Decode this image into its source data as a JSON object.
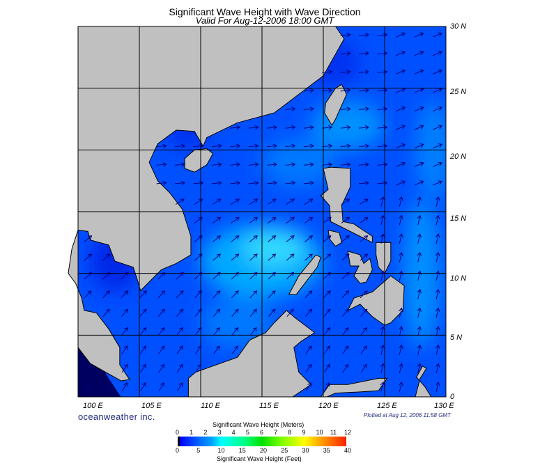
{
  "title": "Significant Wave Height with Wave Direction",
  "subtitle": "Valid For Aug-12-2006 18:00 GMT",
  "lat_labels": [
    "30 N",
    "25 N",
    "20 N",
    "15 N",
    "10 N",
    "5 N",
    "0"
  ],
  "lon_labels": [
    "100 E",
    "105 E",
    "110 E",
    "115 E",
    "120 E",
    "125 E",
    "130 E"
  ],
  "brand": "oceanweather inc.",
  "plotted": "Plotted at Aug 12, 2006 11:58 GMT",
  "colorbar": {
    "meters_title": "Significant Wave Height (Meters)",
    "meters_ticks": [
      "0",
      "1",
      "2",
      "3",
      "4",
      "5",
      "6",
      "7",
      "8",
      "9",
      "10",
      "11",
      "12"
    ],
    "feet_ticks": [
      "0",
      "5",
      "10",
      "15",
      "20",
      "25",
      "30",
      "35",
      "40"
    ],
    "feet_title": "Significant Wave Height (Feet)"
  },
  "colors": {
    "land": "#c0c0c0",
    "ocean": "#0050ff"
  },
  "extent": {
    "lon": [
      100,
      130
    ],
    "lat": [
      0,
      30
    ]
  }
}
